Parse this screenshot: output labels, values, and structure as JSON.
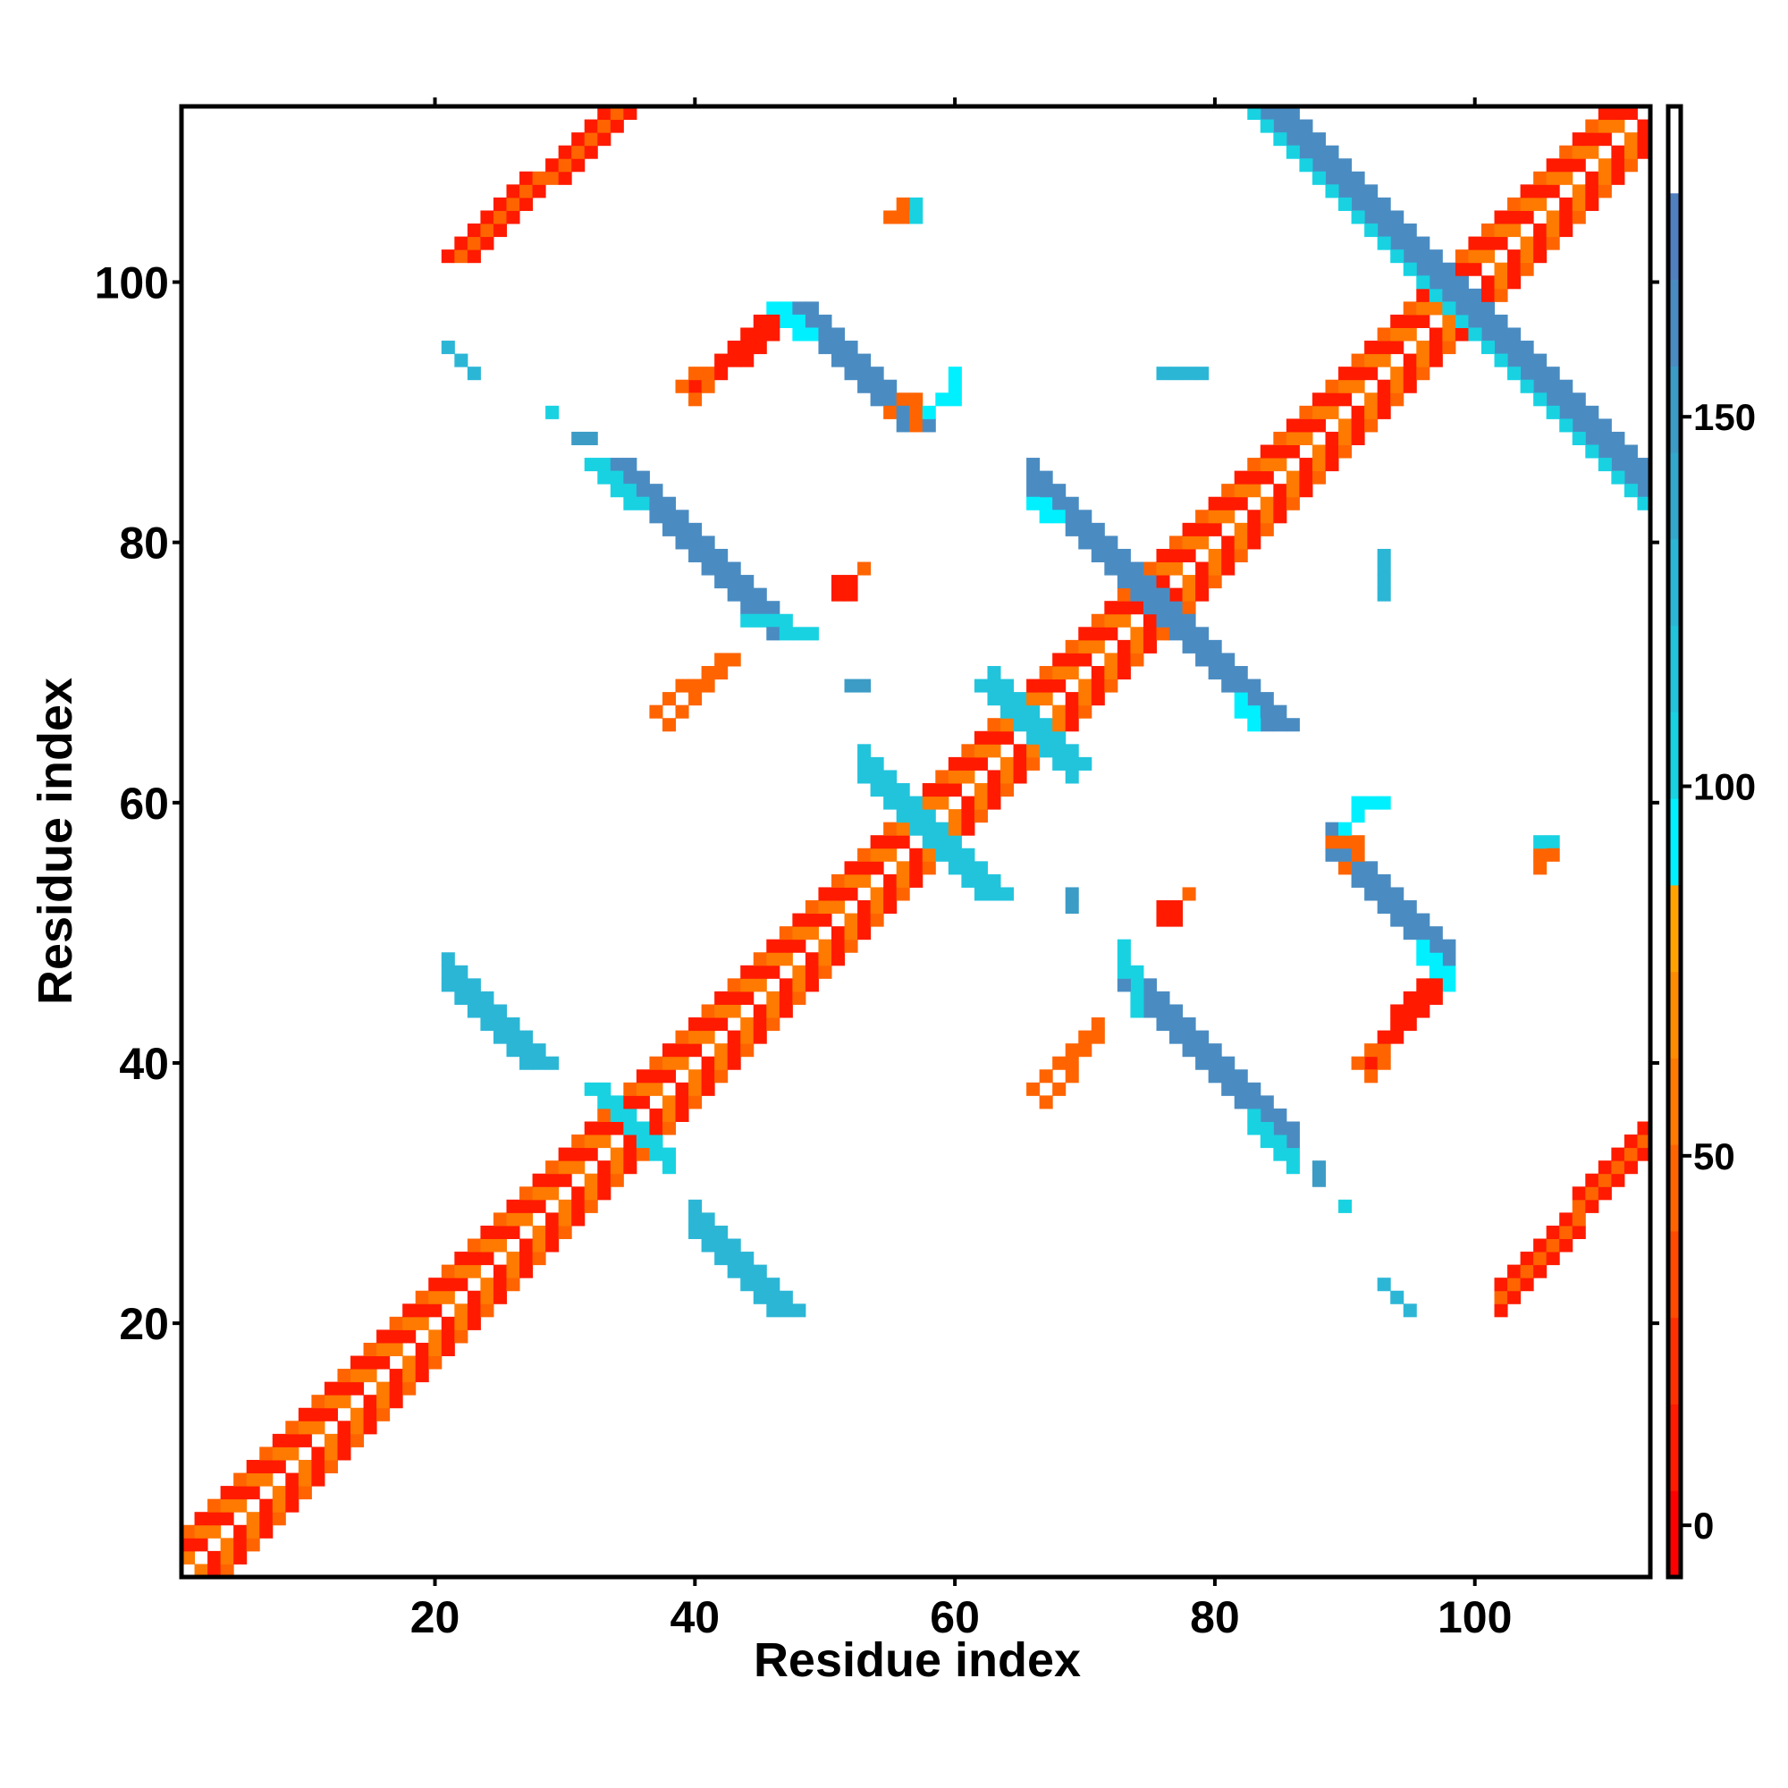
{
  "chart_data": {
    "type": "heatmap",
    "title": "",
    "xlabel": "Residue index",
    "ylabel": "Residue index",
    "xlim": [
      0.5,
      113.5
    ],
    "ylim": [
      0.5,
      113.5
    ],
    "xticks": [
      20,
      40,
      60,
      80,
      100
    ],
    "yticks": [
      20,
      40,
      60,
      80,
      100
    ],
    "xtick_labels": [
      "20",
      "40",
      "60",
      "80",
      "100"
    ],
    "ytick_labels": [
      "20",
      "40",
      "60",
      "80",
      "100"
    ],
    "grid": false,
    "symmetric": true,
    "colorbar": {
      "range": [
        -7,
        192
      ],
      "ticks": [
        0,
        50,
        100,
        150
      ],
      "tick_labels": [
        "0",
        "50",
        "100",
        "150"
      ],
      "placement": "right",
      "bin_colors_low_to_high": [
        "#ff0000",
        "#ff1a00",
        "#ff3000",
        "#ff4a00",
        "#ff6400",
        "#ff7a00",
        "#ff8c00",
        "#ffa200",
        "#00f0ff",
        "#18d2e2",
        "#22c4dc",
        "#2cb6d6",
        "#34a8cc",
        "#3c9cc6",
        "#4a8cc2",
        "#5080c0",
        "#ffffff"
      ]
    },
    "diagonal": {
      "residues": [
        1,
        113
      ],
      "offsets": [
        {
          "offset": 1,
          "values": [
            5,
            55
          ]
        },
        {
          "offset": 2,
          "values": [
            55,
            5
          ]
        },
        {
          "offset": 3,
          "values": [
            5,
            45
          ]
        }
      ]
    },
    "strips": [
      {
        "x0": 21,
        "y0": 102,
        "x1": 33,
        "y1": 113,
        "w": 3,
        "v": 5
      },
      {
        "x0": 22,
        "y0": 102,
        "x1": 34,
        "y1": 113,
        "w": 1,
        "v": 50
      },
      {
        "x0": 84,
        "y0": 113,
        "x1": 112,
        "y1": 85,
        "w": 3,
        "v": 160
      },
      {
        "x0": 83,
        "y0": 113,
        "x1": 111,
        "y1": 85,
        "w": 1,
        "v": 100
      },
      {
        "x0": 47,
        "y0": 98,
        "x1": 56,
        "y1": 89,
        "w": 3,
        "v": 160
      },
      {
        "x0": 46,
        "y0": 98,
        "x1": 48,
        "y1": 96,
        "w": 2,
        "v": 95
      },
      {
        "x0": 33,
        "y0": 86,
        "x1": 46,
        "y1": 73,
        "w": 3,
        "v": 160
      },
      {
        "x0": 32,
        "y0": 86,
        "x1": 35,
        "y1": 83,
        "w": 2,
        "v": 100
      },
      {
        "x0": 44,
        "y0": 74,
        "x1": 48,
        "y1": 73,
        "w": 2,
        "v": 100
      },
      {
        "x0": 67,
        "y0": 83,
        "x1": 84,
        "y1": 66,
        "w": 3,
        "v": 160
      },
      {
        "x0": 66,
        "y0": 83,
        "x1": 67,
        "y1": 82,
        "w": 2,
        "v": 95
      },
      {
        "x0": 53,
        "y0": 62,
        "x1": 62,
        "y1": 53,
        "w": 3,
        "v": 120
      },
      {
        "x0": 62,
        "y0": 69,
        "x1": 69,
        "y1": 63,
        "w": 2,
        "v": 120
      },
      {
        "x0": 21,
        "y0": 46,
        "x1": 27,
        "y1": 40,
        "w": 3,
        "v": 125
      },
      {
        "x0": 40,
        "y0": 27,
        "x1": 46,
        "y1": 21,
        "w": 3,
        "v": 125
      },
      {
        "x0": 32,
        "y0": 38,
        "x1": 37,
        "y1": 33,
        "w": 2,
        "v": 110
      },
      {
        "x0": 21,
        "y0": 95,
        "x1": 23,
        "y1": 93,
        "w": 1,
        "v": 130
      },
      {
        "x0": 40,
        "y0": 92,
        "x1": 45,
        "y1": 97,
        "w": 2,
        "v": 5
      },
      {
        "x0": 39,
        "y0": 92,
        "x1": 41,
        "y1": 93,
        "w": 1,
        "v": 50
      },
      {
        "x0": 37,
        "y0": 67,
        "x1": 42,
        "y1": 71,
        "w": 1,
        "v": 40
      },
      {
        "x0": 66,
        "y0": 38,
        "x1": 71,
        "y1": 43,
        "w": 1,
        "v": 40
      },
      {
        "x0": 92,
        "y0": 41,
        "x1": 96,
        "y1": 46,
        "w": 2,
        "v": 5
      },
      {
        "x0": 91,
        "y0": 40,
        "x1": 93,
        "y1": 41,
        "w": 1,
        "v": 50
      },
      {
        "x0": 55,
        "y0": 105,
        "x1": 56,
        "y1": 105,
        "w": 1,
        "v": 45
      },
      {
        "x0": 57,
        "y0": 105,
        "x1": 57,
        "y1": 106,
        "w": 1,
        "v": 110
      },
      {
        "x0": 55,
        "y0": 90,
        "x1": 57,
        "y1": 91,
        "w": 1,
        "v": 45
      },
      {
        "x0": 58,
        "y0": 90,
        "x1": 59,
        "y1": 91,
        "w": 1,
        "v": 95
      },
      {
        "x0": 76,
        "y0": 93,
        "x1": 78,
        "y1": 93,
        "w": 1,
        "v": 120
      },
      {
        "x0": 93,
        "y0": 79,
        "x1": 93,
        "y1": 76,
        "w": 1,
        "v": 130
      },
      {
        "x0": 89,
        "y0": 57,
        "x1": 90,
        "y1": 57,
        "w": 1,
        "v": 45
      },
      {
        "x0": 91,
        "y0": 60,
        "x1": 93,
        "y1": 60,
        "w": 1,
        "v": 95
      },
      {
        "x0": 105,
        "y0": 55,
        "x1": 106,
        "y1": 56,
        "w": 1,
        "v": 45
      },
      {
        "x0": 29,
        "y0": 90,
        "x1": 29,
        "y1": 90,
        "w": 1,
        "v": 110
      },
      {
        "x0": 31,
        "y0": 88,
        "x1": 32,
        "y1": 88,
        "w": 1,
        "v": 150
      },
      {
        "x0": 51,
        "y0": 77,
        "x1": 52,
        "y1": 77,
        "w": 1,
        "v": 10
      },
      {
        "x0": 53,
        "y0": 78,
        "x1": 53,
        "y1": 78,
        "w": 1,
        "v": 45
      },
      {
        "x0": 52,
        "y0": 69,
        "x1": 53,
        "y1": 69,
        "w": 1,
        "v": 150
      },
      {
        "x0": 76,
        "y0": 51,
        "x1": 76,
        "y1": 52,
        "w": 1,
        "v": 10
      },
      {
        "x0": 78,
        "y0": 53,
        "x1": 78,
        "y1": 53,
        "w": 1,
        "v": 45
      }
    ]
  }
}
